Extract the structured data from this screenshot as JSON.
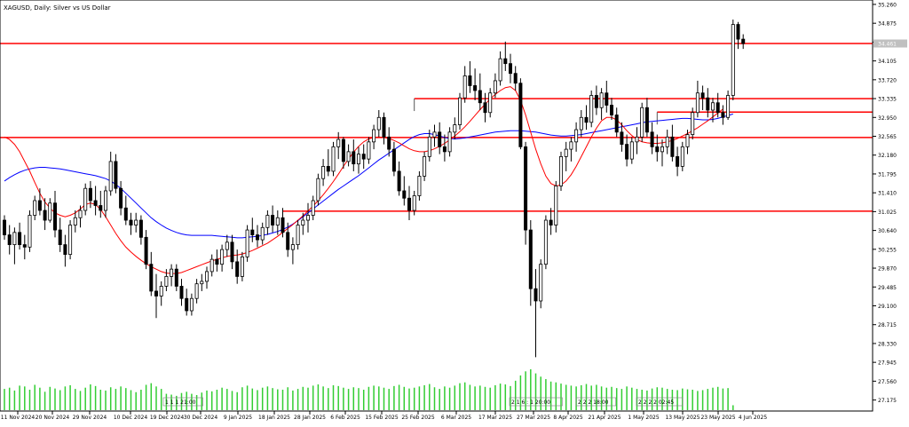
{
  "window_title": "XAGUSD, Daily:  Silver vs US Dollar",
  "colors": {
    "background": "#ffffff",
    "candle": "#000000",
    "ma_fast": "#ff0000",
    "ma_slow": "#0000ff",
    "level_line": "#ff0000",
    "volume": "#32cd32",
    "axis": "#000000",
    "price_tag": "#c0c0c0"
  },
  "chart_data": {
    "type": "candlestick",
    "title": "XAGUSD, Daily:  Silver vs US Dollar",
    "x_tick_labels": [
      "11 Nov 2024",
      "20 Nov 2024",
      "29 Nov 2024",
      "10 Dec 2024",
      "19 Dec 2024",
      "30 Dec 2024",
      "9 Jan 2025",
      "18 Jan 2025",
      "28 Jan 2025",
      "6 Feb 2025",
      "15 Feb 2025",
      "25 Feb 2025",
      "6 Mar 2025",
      "17 Mar 2025",
      "27 Mar 2025",
      "8 Apr 2025",
      "21 Apr 2025",
      "1 May 2025",
      "13 May 2025",
      "23 May 2025",
      "4 Jun 2025"
    ],
    "y_ticks": [
      35.26,
      34.875,
      34.49,
      34.105,
      33.72,
      33.335,
      32.95,
      32.565,
      32.18,
      31.795,
      31.41,
      31.025,
      30.64,
      30.255,
      29.87,
      29.485,
      29.1,
      28.715,
      28.33,
      27.945,
      27.56,
      27.175
    ],
    "ylim": [
      26.95,
      35.35
    ],
    "current_price_label": "34.461",
    "current_price": 34.461,
    "horizontal_levels": [
      34.461,
      33.335,
      33.06,
      32.54,
      31.035
    ],
    "partial_levels": [
      {
        "price": 33.335,
        "from_index": 81
      },
      {
        "price": 33.06,
        "from_index": 129
      },
      {
        "price": 31.035,
        "from_index": 55
      }
    ],
    "annotations": [
      "1 1 1 21:00",
      "2 1 6 : 1 20:00",
      "2 2 2 18:00",
      "2 2 2 2 02:45"
    ],
    "candles": [
      [
        30.85,
        30.95,
        30.45,
        30.55
      ],
      [
        30.55,
        30.75,
        30.15,
        30.35
      ],
      [
        30.35,
        30.7,
        29.95,
        30.6
      ],
      [
        30.6,
        30.8,
        30.25,
        30.35
      ],
      [
        30.35,
        30.55,
        30.05,
        30.3
      ],
      [
        30.3,
        31.05,
        30.2,
        30.95
      ],
      [
        30.95,
        31.35,
        30.85,
        31.25
      ],
      [
        31.25,
        31.5,
        30.95,
        31.05
      ],
      [
        31.05,
        31.3,
        30.65,
        30.85
      ],
      [
        30.85,
        31.3,
        30.8,
        31.2
      ],
      [
        31.2,
        31.45,
        30.5,
        30.65
      ],
      [
        30.65,
        30.9,
        30.2,
        30.35
      ],
      [
        30.35,
        30.55,
        29.9,
        30.15
      ],
      [
        30.15,
        30.85,
        30.05,
        30.75
      ],
      [
        30.75,
        31.05,
        30.6,
        30.9
      ],
      [
        30.9,
        31.15,
        30.7,
        31.05
      ],
      [
        31.05,
        31.6,
        30.95,
        31.5
      ],
      [
        31.5,
        31.65,
        31.1,
        31.25
      ],
      [
        31.25,
        31.55,
        30.95,
        31.15
      ],
      [
        31.15,
        31.45,
        30.9,
        31.05
      ],
      [
        31.05,
        31.55,
        30.9,
        31.45
      ],
      [
        31.45,
        32.25,
        31.35,
        32.05
      ],
      [
        32.05,
        32.2,
        31.4,
        31.5
      ],
      [
        31.5,
        31.65,
        30.95,
        31.1
      ],
      [
        31.1,
        31.35,
        30.75,
        30.85
      ],
      [
        30.85,
        31.0,
        30.55,
        30.75
      ],
      [
        30.75,
        31.0,
        30.6,
        30.85
      ],
      [
        30.85,
        30.95,
        30.35,
        30.5
      ],
      [
        30.5,
        30.65,
        29.85,
        29.95
      ],
      [
        29.95,
        30.2,
        29.3,
        29.4
      ],
      [
        29.4,
        29.75,
        28.85,
        29.3
      ],
      [
        29.3,
        29.6,
        29.1,
        29.5
      ],
      [
        29.5,
        29.85,
        29.4,
        29.7
      ],
      [
        29.7,
        29.95,
        29.5,
        29.85
      ],
      [
        29.85,
        29.95,
        29.4,
        29.5
      ],
      [
        29.5,
        29.65,
        29.1,
        29.25
      ],
      [
        29.25,
        29.45,
        28.9,
        29.0
      ],
      [
        29.0,
        29.35,
        28.9,
        29.25
      ],
      [
        29.25,
        29.65,
        29.15,
        29.55
      ],
      [
        29.55,
        29.75,
        29.4,
        29.6
      ],
      [
        29.6,
        29.9,
        29.45,
        29.8
      ],
      [
        29.8,
        30.15,
        29.7,
        30.05
      ],
      [
        30.05,
        30.25,
        29.8,
        29.95
      ],
      [
        29.95,
        30.35,
        29.8,
        30.25
      ],
      [
        30.25,
        30.55,
        30.1,
        30.4
      ],
      [
        30.4,
        30.55,
        29.85,
        30.0
      ],
      [
        30.0,
        30.25,
        29.55,
        29.7
      ],
      [
        29.7,
        30.2,
        29.6,
        30.1
      ],
      [
        30.1,
        30.75,
        30.0,
        30.65
      ],
      [
        30.65,
        30.9,
        30.4,
        30.55
      ],
      [
        30.55,
        30.75,
        30.3,
        30.45
      ],
      [
        30.45,
        30.8,
        30.35,
        30.7
      ],
      [
        30.7,
        31.05,
        30.55,
        30.95
      ],
      [
        30.95,
        31.15,
        30.6,
        30.75
      ],
      [
        30.75,
        31.05,
        30.55,
        30.9
      ],
      [
        30.9,
        31.1,
        30.5,
        30.6
      ],
      [
        30.6,
        30.8,
        30.1,
        30.25
      ],
      [
        30.25,
        30.5,
        29.95,
        30.35
      ],
      [
        30.35,
        30.85,
        30.25,
        30.75
      ],
      [
        30.75,
        31.0,
        30.55,
        30.85
      ],
      [
        30.85,
        31.2,
        30.6,
        30.95
      ],
      [
        30.95,
        31.35,
        30.85,
        31.25
      ],
      [
        31.25,
        31.8,
        31.15,
        31.7
      ],
      [
        31.7,
        32.1,
        31.55,
        31.95
      ],
      [
        31.95,
        32.3,
        31.75,
        31.85
      ],
      [
        31.85,
        32.45,
        31.75,
        32.35
      ],
      [
        32.35,
        32.65,
        32.1,
        32.5
      ],
      [
        32.5,
        32.55,
        31.9,
        32.05
      ],
      [
        32.05,
        32.4,
        31.95,
        32.25
      ],
      [
        32.25,
        32.5,
        31.85,
        32.0
      ],
      [
        32.0,
        32.35,
        31.8,
        32.2
      ],
      [
        32.2,
        32.4,
        31.9,
        32.1
      ],
      [
        32.1,
        32.55,
        32.0,
        32.45
      ],
      [
        32.45,
        32.8,
        32.3,
        32.7
      ],
      [
        32.7,
        33.1,
        32.55,
        32.95
      ],
      [
        32.95,
        33.05,
        32.4,
        32.55
      ],
      [
        32.55,
        32.75,
        32.15,
        32.3
      ],
      [
        32.3,
        32.45,
        31.75,
        31.85
      ],
      [
        31.85,
        32.05,
        31.35,
        31.45
      ],
      [
        31.45,
        31.75,
        31.15,
        31.3
      ],
      [
        31.3,
        31.55,
        30.85,
        31.05
      ],
      [
        31.05,
        31.45,
        30.95,
        31.35
      ],
      [
        31.35,
        31.85,
        31.25,
        31.75
      ],
      [
        31.75,
        32.25,
        31.65,
        32.15
      ],
      [
        32.15,
        32.7,
        32.05,
        32.55
      ],
      [
        32.55,
        32.8,
        32.35,
        32.65
      ],
      [
        32.65,
        32.85,
        32.2,
        32.35
      ],
      [
        32.35,
        32.6,
        32.05,
        32.25
      ],
      [
        32.25,
        32.75,
        32.15,
        32.65
      ],
      [
        32.65,
        32.95,
        32.5,
        32.8
      ],
      [
        32.8,
        33.45,
        32.7,
        33.35
      ],
      [
        33.35,
        34.0,
        33.25,
        33.8
      ],
      [
        33.8,
        34.1,
        33.45,
        33.6
      ],
      [
        33.6,
        33.95,
        33.3,
        33.5
      ],
      [
        33.5,
        33.85,
        33.1,
        33.25
      ],
      [
        33.25,
        33.45,
        32.85,
        33.05
      ],
      [
        33.05,
        33.55,
        32.95,
        33.45
      ],
      [
        33.45,
        33.85,
        33.35,
        33.7
      ],
      [
        33.7,
        34.3,
        33.6,
        34.15
      ],
      [
        34.15,
        34.5,
        33.9,
        34.05
      ],
      [
        34.05,
        34.25,
        33.65,
        33.85
      ],
      [
        33.85,
        34.0,
        33.5,
        33.65
      ],
      [
        33.65,
        33.75,
        32.3,
        32.35
      ],
      [
        32.35,
        32.45,
        30.35,
        30.65
      ],
      [
        30.65,
        30.85,
        29.1,
        29.45
      ],
      [
        29.45,
        29.85,
        28.05,
        29.2
      ],
      [
        29.2,
        30.05,
        29.05,
        29.95
      ],
      [
        29.95,
        30.95,
        29.85,
        30.85
      ],
      [
        30.85,
        31.1,
        30.55,
        30.75
      ],
      [
        30.75,
        31.65,
        30.6,
        31.55
      ],
      [
        31.55,
        32.25,
        31.45,
        32.15
      ],
      [
        32.15,
        32.45,
        31.85,
        32.3
      ],
      [
        32.3,
        32.55,
        32.05,
        32.45
      ],
      [
        32.45,
        32.85,
        32.25,
        32.7
      ],
      [
        32.7,
        33.1,
        32.55,
        32.95
      ],
      [
        32.95,
        33.2,
        32.7,
        32.85
      ],
      [
        32.85,
        33.5,
        32.75,
        33.4
      ],
      [
        33.4,
        33.6,
        33.0,
        33.15
      ],
      [
        33.15,
        33.55,
        32.9,
        33.45
      ],
      [
        33.45,
        33.7,
        33.05,
        33.2
      ],
      [
        33.2,
        33.35,
        32.9,
        33.0
      ],
      [
        33.0,
        33.15,
        32.55,
        32.65
      ],
      [
        32.65,
        32.85,
        32.25,
        32.4
      ],
      [
        32.4,
        32.6,
        31.95,
        32.1
      ],
      [
        32.1,
        32.55,
        32.0,
        32.45
      ],
      [
        32.45,
        32.75,
        32.2,
        32.55
      ],
      [
        32.55,
        33.25,
        32.45,
        33.15
      ],
      [
        33.15,
        33.35,
        32.55,
        32.65
      ],
      [
        32.65,
        32.85,
        32.2,
        32.35
      ],
      [
        32.35,
        32.6,
        32.05,
        32.25
      ],
      [
        32.25,
        32.5,
        31.95,
        32.35
      ],
      [
        32.35,
        32.7,
        32.2,
        32.55
      ],
      [
        32.55,
        32.8,
        32.05,
        32.15
      ],
      [
        32.15,
        32.35,
        31.75,
        31.95
      ],
      [
        31.95,
        32.45,
        31.85,
        32.35
      ],
      [
        32.35,
        32.7,
        32.2,
        32.6
      ],
      [
        32.6,
        33.15,
        32.5,
        33.05
      ],
      [
        33.05,
        33.7,
        32.95,
        33.45
      ],
      [
        33.45,
        33.6,
        33.1,
        33.35
      ],
      [
        33.35,
        33.55,
        32.95,
        33.1
      ],
      [
        33.1,
        33.35,
        32.85,
        33.25
      ],
      [
        33.25,
        33.45,
        32.95,
        33.05
      ],
      [
        33.05,
        33.2,
        32.8,
        32.95
      ],
      [
        32.95,
        33.5,
        32.9,
        33.4
      ],
      [
        33.4,
        34.95,
        33.3,
        34.85
      ],
      [
        34.85,
        34.9,
        34.35,
        34.55
      ],
      [
        34.55,
        34.65,
        34.35,
        34.46
      ]
    ],
    "ma_fast": [
      32.55,
      32.5,
      32.4,
      32.25,
      32.05,
      31.85,
      31.62,
      31.4,
      31.22,
      31.1,
      31.0,
      30.95,
      30.92,
      30.95,
      31.0,
      31.08,
      31.17,
      31.2,
      31.17,
      31.07,
      30.92,
      30.75,
      30.58,
      30.43,
      30.3,
      30.2,
      30.11,
      30.03,
      29.96,
      29.9,
      29.85,
      29.8,
      29.77,
      29.76,
      29.76,
      29.78,
      29.82,
      29.86,
      29.9,
      29.94,
      29.98,
      30.02,
      30.05,
      30.08,
      30.11,
      30.13,
      30.14,
      30.16,
      30.19,
      30.23,
      30.28,
      30.33,
      30.38,
      30.45,
      30.52,
      30.6,
      30.68,
      30.76,
      30.85,
      30.94,
      31.04,
      31.14,
      31.25,
      31.37,
      31.5,
      31.64,
      31.79,
      31.95,
      32.1,
      32.24,
      32.36,
      32.45,
      32.51,
      32.54,
      32.55,
      32.54,
      32.52,
      32.48,
      32.43,
      32.37,
      32.31,
      32.27,
      32.25,
      32.25,
      32.27,
      32.31,
      32.36,
      32.42,
      32.49,
      32.57,
      32.66,
      32.76,
      32.87,
      32.99,
      33.11,
      33.22,
      33.33,
      33.42,
      33.5,
      33.56,
      33.58,
      33.5,
      33.3,
      33.0,
      32.65,
      32.3,
      32.0,
      31.75,
      31.6,
      31.55,
      31.57,
      31.65,
      31.78,
      31.95,
      32.15,
      32.35,
      32.55,
      32.73,
      32.88,
      32.95,
      32.95,
      32.9,
      32.8,
      32.68,
      32.58,
      32.5,
      32.45,
      32.43,
      32.42,
      32.42,
      32.43,
      32.45,
      32.48,
      32.52,
      32.57,
      32.62,
      32.68,
      32.74,
      32.81,
      32.88,
      32.96,
      33.04,
      33.12
    ],
    "ma_slow": [
      31.65,
      31.72,
      31.78,
      31.83,
      31.87,
      31.9,
      31.92,
      31.93,
      31.93,
      31.92,
      31.91,
      31.9,
      31.88,
      31.86,
      31.84,
      31.82,
      31.8,
      31.78,
      31.76,
      31.73,
      31.7,
      31.65,
      31.58,
      31.5,
      31.4,
      31.3,
      31.2,
      31.1,
      31.0,
      30.9,
      30.82,
      30.75,
      30.69,
      30.64,
      30.6,
      30.57,
      30.55,
      30.54,
      30.54,
      30.54,
      30.54,
      30.54,
      30.53,
      30.52,
      30.51,
      30.5,
      30.49,
      30.49,
      30.5,
      30.51,
      30.52,
      30.54,
      30.56,
      30.59,
      30.62,
      30.66,
      30.71,
      30.77,
      30.84,
      30.92,
      31.0,
      31.08,
      31.16,
      31.24,
      31.32,
      31.4,
      31.48,
      31.55,
      31.62,
      31.69,
      31.76,
      31.84,
      31.92,
      32.0,
      32.08,
      32.15,
      32.22,
      32.29,
      32.36,
      32.43,
      32.5,
      32.56,
      32.6,
      32.62,
      32.62,
      32.6,
      32.57,
      32.54,
      32.52,
      32.51,
      32.52,
      32.53,
      32.55,
      32.57,
      32.59,
      32.61,
      32.63,
      32.65,
      32.66,
      32.67,
      32.68,
      32.68,
      32.68,
      32.67,
      32.66,
      32.65,
      32.63,
      32.61,
      32.59,
      32.58,
      32.57,
      32.57,
      32.58,
      32.59,
      32.6,
      32.62,
      32.64,
      32.66,
      32.68,
      32.7,
      32.72,
      32.74,
      32.76,
      32.78,
      32.8,
      32.82,
      32.84,
      32.86,
      32.87,
      32.88,
      32.89,
      32.9,
      32.91,
      32.92,
      32.93,
      32.93,
      32.92,
      32.91,
      32.9,
      32.9,
      32.91,
      32.93,
      32.96,
      32.99,
      33.02
    ],
    "volume": [
      0.52,
      0.55,
      0.48,
      0.6,
      0.58,
      0.5,
      0.62,
      0.55,
      0.45,
      0.57,
      0.53,
      0.49,
      0.58,
      0.61,
      0.52,
      0.47,
      0.55,
      0.63,
      0.59,
      0.5,
      0.48,
      0.56,
      0.52,
      0.58,
      0.54,
      0.49,
      0.44,
      0.5,
      0.62,
      0.66,
      0.58,
      0.52,
      0.4,
      0.38,
      0.35,
      0.42,
      0.45,
      0.4,
      0.37,
      0.43,
      0.48,
      0.46,
      0.5,
      0.55,
      0.52,
      0.47,
      0.44,
      0.56,
      0.6,
      0.53,
      0.49,
      0.55,
      0.58,
      0.54,
      0.51,
      0.5,
      0.56,
      0.48,
      0.52,
      0.57,
      0.55,
      0.6,
      0.63,
      0.58,
      0.54,
      0.61,
      0.59,
      0.55,
      0.52,
      0.56,
      0.54,
      0.5,
      0.57,
      0.6,
      0.58,
      0.55,
      0.52,
      0.59,
      0.62,
      0.57,
      0.53,
      0.55,
      0.58,
      0.61,
      0.64,
      0.56,
      0.52,
      0.58,
      0.55,
      0.6,
      0.66,
      0.68,
      0.62,
      0.58,
      0.6,
      0.57,
      0.55,
      0.61,
      0.65,
      0.63,
      0.59,
      0.72,
      0.85,
      0.95,
      1.0,
      0.9,
      0.82,
      0.76,
      0.7,
      0.68,
      0.65,
      0.62,
      0.6,
      0.58,
      0.61,
      0.64,
      0.6,
      0.62,
      0.58,
      0.55,
      0.57,
      0.54,
      0.52,
      0.58,
      0.55,
      0.52,
      0.5,
      0.48,
      0.53,
      0.56,
      0.55,
      0.52,
      0.5,
      0.49,
      0.53,
      0.51,
      0.5,
      0.47,
      0.49,
      0.52,
      0.55,
      0.57,
      0.53,
      0.54,
      0.12
    ]
  }
}
